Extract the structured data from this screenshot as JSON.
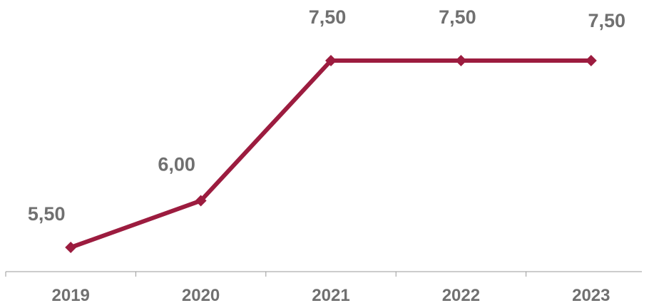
{
  "chart_data": {
    "type": "line",
    "categories": [
      "2019",
      "2020",
      "2021",
      "2022",
      "2023"
    ],
    "values": [
      5.5,
      6.0,
      7.5,
      7.5,
      7.5
    ],
    "data_labels": [
      "5,50",
      "6,00",
      "7,50",
      "7,50",
      "7,50"
    ],
    "title": "",
    "xlabel": "",
    "ylabel": "",
    "ylim": [
      5.0,
      8.0
    ],
    "grid": false,
    "legend": "none",
    "marker": "diamond"
  },
  "colors": {
    "line": "#9c1c3f",
    "label": "#707070",
    "axis": "#9a9a9a"
  }
}
